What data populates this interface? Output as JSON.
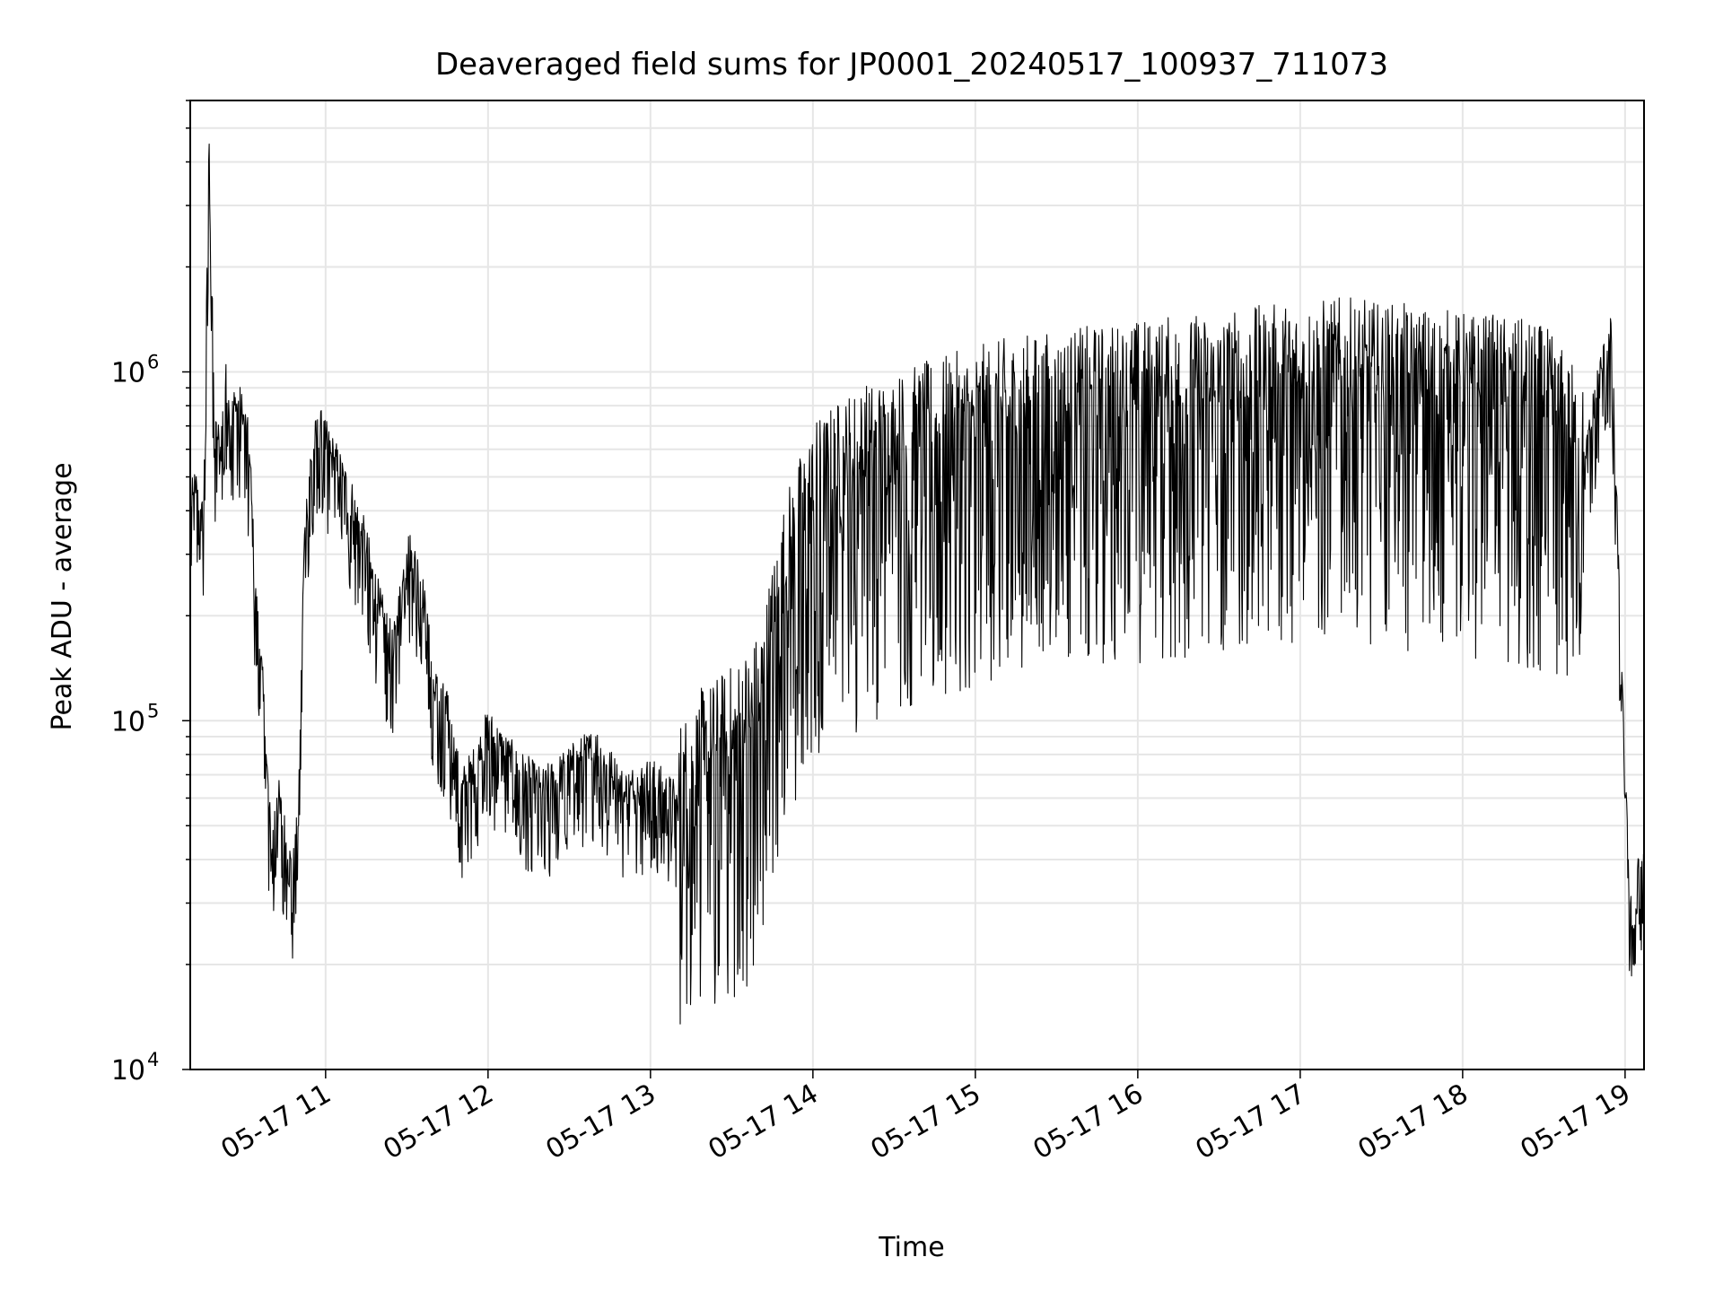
{
  "chart_data": {
    "type": "line",
    "title": "Deaveraged field sums for JP0001_20240517_100937_711073",
    "xlabel": "Time",
    "ylabel": "Peak ADU - average",
    "yscale": "log",
    "ylim": [
      10000,
      6000000
    ],
    "xlim": [
      "05-17 10:10",
      "05-17 19:07"
    ],
    "grid": true,
    "legend": "none",
    "line_color": "#000000",
    "x_ticks": [
      "05-17 11",
      "05-17 12",
      "05-17 13",
      "05-17 14",
      "05-17 15",
      "05-17 16",
      "05-17 17",
      "05-17 18",
      "05-17 19"
    ],
    "x_tick_times": [
      "05-17 11:00",
      "05-17 12:00",
      "05-17 13:00",
      "05-17 14:00",
      "05-17 15:00",
      "05-17 16:00",
      "05-17 17:00",
      "05-17 18:00",
      "05-17 19:00"
    ],
    "y_ticks": [
      {
        "base": "10",
        "exp": "4",
        "value": 10000
      },
      {
        "base": "10",
        "exp": "5",
        "value": 100000
      },
      {
        "base": "10",
        "exp": "6",
        "value": 1000000
      }
    ],
    "series": [
      {
        "x": [
          "05-17 10:10",
          "05-17 10:12",
          "05-17 10:14",
          "05-17 10:15",
          "05-17 10:17",
          "05-17 10:19",
          "05-17 10:20",
          "05-17 10:21",
          "05-17 10:23",
          "05-17 10:25",
          "05-17 10:27",
          "05-17 10:30",
          "05-17 10:32",
          "05-17 10:34",
          "05-17 10:36",
          "05-17 10:38",
          "05-17 10:40",
          "05-17 10:42",
          "05-17 10:44",
          "05-17 10:46",
          "05-17 10:48",
          "05-17 10:50",
          "05-17 10:52",
          "05-17 10:54",
          "05-17 10:56",
          "05-17 10:58",
          "05-17 11:00",
          "05-17 11:05",
          "05-17 11:10",
          "05-17 11:15",
          "05-17 11:20",
          "05-17 11:25",
          "05-17 11:30",
          "05-17 11:35",
          "05-17 11:40",
          "05-17 11:45",
          "05-17 11:50",
          "05-17 11:55",
          "05-17 12:00",
          "05-17 12:10",
          "05-17 12:20",
          "05-17 12:30",
          "05-17 12:40",
          "05-17 12:50",
          "05-17 13:00",
          "05-17 13:10",
          "05-17 13:20",
          "05-17 13:30",
          "05-17 13:40",
          "05-17 13:50",
          "05-17 14:00",
          "05-17 14:15",
          "05-17 14:30",
          "05-17 14:45",
          "05-17 15:00",
          "05-17 15:15",
          "05-17 15:30",
          "05-17 15:45",
          "05-17 16:00",
          "05-17 16:15",
          "05-17 16:30",
          "05-17 16:45",
          "05-17 17:00",
          "05-17 17:15",
          "05-17 17:30",
          "05-17 17:45",
          "05-17 18:00",
          "05-17 18:15",
          "05-17 18:30",
          "05-17 18:40",
          "05-17 18:45",
          "05-17 18:50",
          "05-17 18:55",
          "05-17 19:00",
          "05-17 19:03",
          "05-17 19:05",
          "05-17 19:07"
        ],
        "values": [
          380000,
          450000,
          350000,
          400000,
          4500000,
          600000,
          650000,
          560000,
          900000,
          700000,
          800000,
          700000,
          550000,
          220000,
          150000,
          80000,
          40000,
          60000,
          50000,
          40000,
          35000,
          50000,
          300000,
          500000,
          600000,
          650000,
          600000,
          500000,
          400000,
          300000,
          200000,
          150000,
          300000,
          250000,
          120000,
          100000,
          60000,
          70000,
          90000,
          70000,
          60000,
          70000,
          80000,
          60000,
          65000,
          55000,
          70000,
          80000,
          100000,
          250000,
          400000,
          500000,
          550000,
          600000,
          650000,
          700000,
          720000,
          750000,
          780000,
          800000,
          820000,
          850000,
          880000,
          900000,
          870000,
          850000,
          820000,
          800000,
          750000,
          600000,
          500000,
          900000,
          1200000,
          60000,
          20000,
          40000,
          35000
        ]
      }
    ]
  }
}
